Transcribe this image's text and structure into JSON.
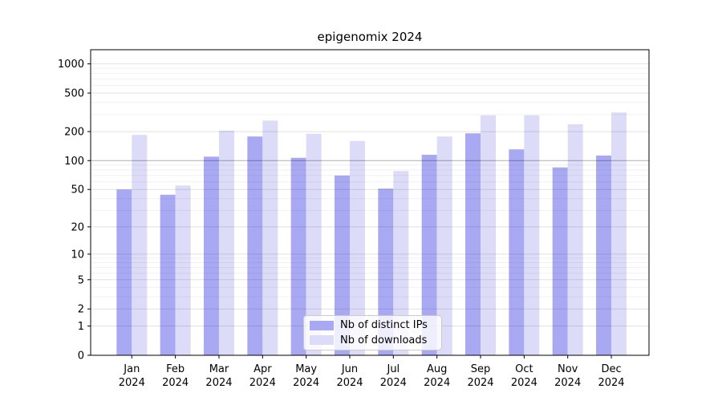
{
  "chart_data": {
    "type": "bar",
    "title": "epigenomix 2024",
    "categories": [
      "Jan 2024",
      "Feb 2024",
      "Mar 2024",
      "Apr 2024",
      "May 2024",
      "Jun 2024",
      "Jul 2024",
      "Aug 2024",
      "Sep 2024",
      "Oct 2024",
      "Nov 2024",
      "Dec 2024"
    ],
    "series": [
      {
        "name": "Nb of distinct IPs",
        "color": "#a9a9f3",
        "values": [
          50,
          44,
          110,
          178,
          107,
          70,
          51,
          115,
          192,
          131,
          85,
          113
        ]
      },
      {
        "name": "Nb of downloads",
        "color": "#dcdcf8",
        "values": [
          185,
          55,
          205,
          260,
          190,
          160,
          78,
          178,
          295,
          295,
          238,
          315
        ]
      }
    ],
    "y_scale": "log10(1+v)",
    "y_ticks": [
      0,
      1,
      2,
      5,
      10,
      20,
      50,
      100,
      200,
      500,
      1000
    ],
    "y_minor_ticks": [
      3,
      4,
      6,
      7,
      8,
      9,
      30,
      40,
      60,
      70,
      80,
      90,
      300,
      400,
      600,
      700,
      800,
      900
    ],
    "ylim": [
      0,
      1400
    ],
    "xlabel": "",
    "ylabel": "",
    "grid": true,
    "legend_position": "lower center",
    "axis_color": "#000000",
    "grid_major_color": "rgba(0,0,0,0.12)",
    "grid_minor_color": "rgba(0,0,0,0.055)",
    "grid_emphasis_tick": 100,
    "grid_emphasis_color": "rgba(0,0,0,0.32)"
  }
}
